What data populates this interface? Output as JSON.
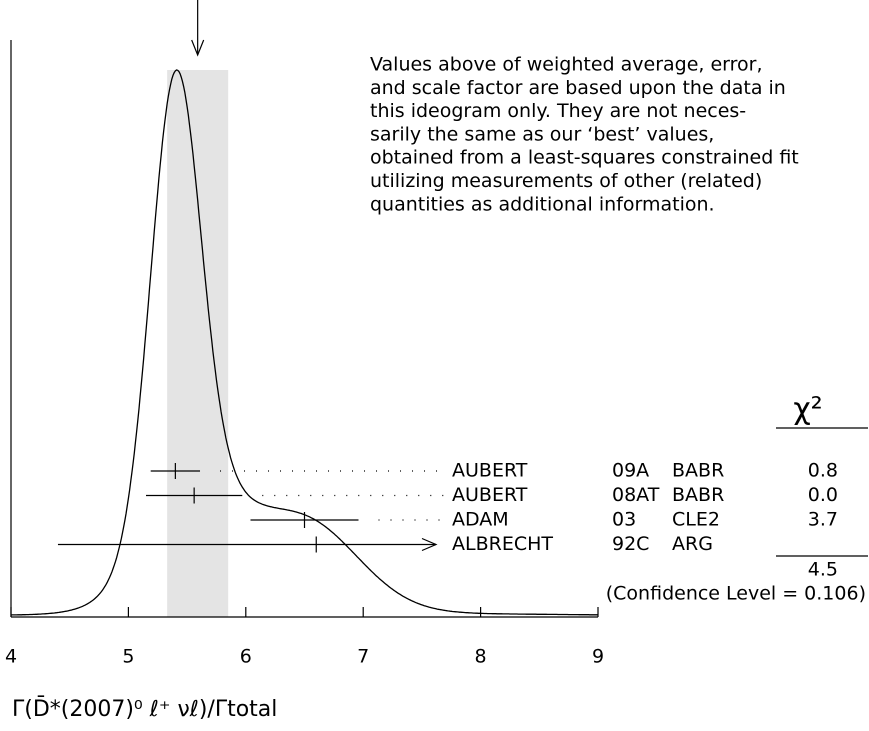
{
  "chart_data": {
    "type": "ideogram",
    "xlim": [
      4,
      9
    ],
    "xticks": [
      4,
      5,
      6,
      7,
      8,
      9
    ],
    "x_label": "Γ(D̄*(2007)⁰ ℓ⁺ νℓ)/Γtotal",
    "weighted_average": 5.59,
    "weighted_error": 0.26,
    "note": [
      "Values above of weighted average, error,",
      "and scale factor are based upon the data in",
      "this ideogram only.  They are not neces-",
      "sarily the same as our ‘best’ values,",
      "obtained from a least-squares constrained fit",
      "utilizing measurements of other (related)",
      "quantities as additional information."
    ],
    "chi2_header": "χ²",
    "measurements": [
      {
        "author": "AUBERT",
        "ref": "09A",
        "experiment": "BABR",
        "value": 5.4,
        "error": 0.21,
        "chi2": "0.8"
      },
      {
        "author": "AUBERT",
        "ref": "08AT",
        "experiment": "BABR",
        "value": 5.56,
        "error": 0.41,
        "chi2": "0.0"
      },
      {
        "author": "ADAM",
        "ref": "03",
        "experiment": "CLE2",
        "value": 6.5,
        "error": 0.46,
        "chi2": "3.7"
      },
      {
        "author": "ALBRECHT",
        "ref": "92C",
        "experiment": "ARG",
        "value": 6.6,
        "error": 2.2
      }
    ],
    "chi2_total": 4.5,
    "confidence_text": "(Confidence Level = 0.106)"
  }
}
